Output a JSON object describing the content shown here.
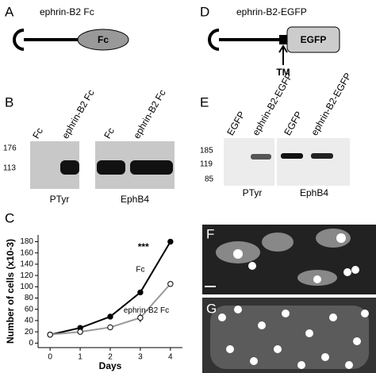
{
  "panels": {
    "A": {
      "label": "A",
      "construct": "ephrin-B2 Fc",
      "domain": "Fc"
    },
    "B": {
      "label": "B",
      "lanes": [
        "Fc",
        "ephrin-B2 Fc",
        "Fc",
        "ephrin-B2 Fc"
      ],
      "markers": [
        176,
        113
      ],
      "blots": [
        "PTyr",
        "EphB4"
      ]
    },
    "C": {
      "label": "C"
    },
    "D": {
      "label": "D",
      "construct": "ephrin-B2-EGFP",
      "domain": "EGFP",
      "tm": "TM"
    },
    "E": {
      "label": "E",
      "lanes": [
        "EGFP",
        "ephrin-B2-EGFP",
        "EGFP",
        "ephrin-B2-EGFP"
      ],
      "markers": [
        185,
        119,
        85
      ],
      "blots": [
        "PTyr",
        "EphB4"
      ]
    },
    "F": {
      "label": "F"
    },
    "G": {
      "label": "G"
    }
  },
  "chart_data": {
    "type": "line",
    "xlabel": "Days",
    "ylabel": "Number of cells (x10-3)",
    "annotation": "***",
    "x": [
      0,
      1,
      2,
      3,
      4
    ],
    "series": [
      {
        "name": "Fc",
        "color": "#000000",
        "marker": "filled",
        "values": [
          15,
          27,
          47,
          90,
          180
        ],
        "errors": [
          2,
          3,
          4,
          3,
          3
        ]
      },
      {
        "name": "ephrin-B2 Fc",
        "color": "#999999",
        "marker": "open",
        "values": [
          15,
          20,
          28,
          45,
          105
        ],
        "errors": [
          2,
          4,
          3,
          8,
          4
        ]
      }
    ],
    "xlim": [
      -0.4,
      4.4
    ],
    "ylim": [
      -8,
      192
    ],
    "xticks": [
      0,
      1,
      2,
      3,
      4
    ],
    "yticks": [
      0,
      20,
      40,
      60,
      80,
      100,
      120,
      140,
      160,
      180
    ]
  }
}
